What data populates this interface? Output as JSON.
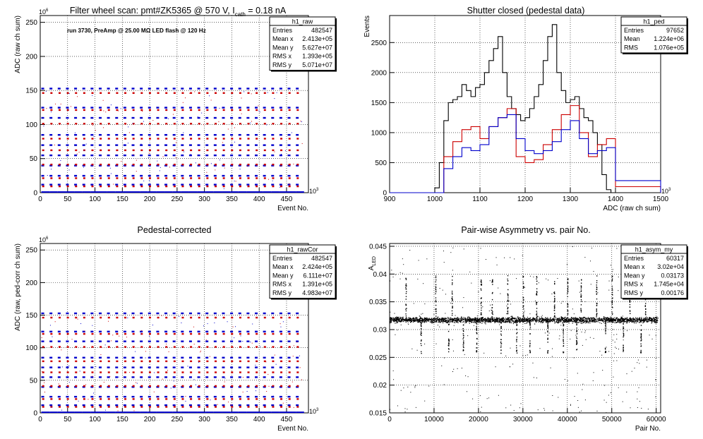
{
  "colors": {
    "black": "#000000",
    "red": "#cc0000",
    "blue": "#0000cc",
    "grid": "#000000"
  },
  "chart_data": [
    {
      "id": "raw",
      "type": "scatter",
      "title": "Filter wheel scan: pmt#ZK5365 @  570 V, I",
      "title_sub": "cath",
      "title_tail": " = 0.18 nA",
      "annotation": "run 3730, PreAmp @ 25.00 MΩ LED flash @  120 Hz",
      "xlabel": "Event No.",
      "ylabel": "ADC (raw ch sum)",
      "x_exponent": "10",
      "x_exponent_power": "3",
      "y_exponent": "10",
      "y_exponent_power": "6",
      "xlim": [
        0,
        490
      ],
      "ylim": [
        0,
        260
      ],
      "x_ticks": [
        0,
        50,
        100,
        150,
        200,
        250,
        300,
        350,
        400,
        450
      ],
      "y_ticks": [
        0,
        50,
        100,
        150,
        200,
        250
      ],
      "grid": true,
      "levels": {
        "red": [
          147,
          122,
          102,
          80,
          63,
          42,
          22,
          10
        ],
        "blue": [
          153,
          125,
          110,
          85,
          70,
          55,
          40,
          25,
          12
        ]
      },
      "burst_period": 15,
      "stats": {
        "name": "h1_raw",
        "rows": [
          [
            "Entries",
            "482547"
          ],
          [
            "Mean x",
            "2.413e+05"
          ],
          [
            "Mean y",
            "5.627e+07"
          ],
          [
            "RMS x",
            "1.393e+05"
          ],
          [
            "RMS y",
            "5.071e+07"
          ]
        ]
      }
    },
    {
      "id": "ped",
      "type": "line",
      "title": "Shutter closed (pedestal data)",
      "xlabel": "ADC (raw ch sum)",
      "ylabel": "Events",
      "x_exponent": "10",
      "x_exponent_power": "3",
      "xlim": [
        900,
        1500
      ],
      "ylim": [
        0,
        2950
      ],
      "x_ticks": [
        900,
        1000,
        1100,
        1200,
        1300,
        1400,
        1500
      ],
      "y_ticks": [
        0,
        500,
        1000,
        1500,
        2000,
        2500
      ],
      "grid": true,
      "series": [
        {
          "color": "black",
          "x": [
            900,
            990,
            1000,
            1010,
            1020,
            1030,
            1040,
            1050,
            1060,
            1070,
            1080,
            1090,
            1100,
            1110,
            1120,
            1130,
            1140,
            1150,
            1160,
            1170,
            1180,
            1190,
            1200,
            1210,
            1220,
            1230,
            1240,
            1250,
            1260,
            1270,
            1280,
            1290,
            1300,
            1310,
            1320,
            1330,
            1340,
            1350,
            1360,
            1370,
            1380,
            1390,
            1400,
            1410,
            1420,
            1500
          ],
          "y": [
            0,
            0,
            80,
            500,
            1200,
            1500,
            1550,
            1600,
            1800,
            1700,
            1600,
            1750,
            1800,
            2000,
            2200,
            2400,
            2600,
            2000,
            1600,
            1400,
            1300,
            1200,
            1250,
            1400,
            1600,
            1800,
            2200,
            2600,
            2800,
            2000,
            1700,
            1500,
            1550,
            1600,
            1400,
            1250,
            1200,
            1000,
            800,
            300,
            50,
            0,
            0,
            0,
            0,
            0
          ],
          "x_offset": 0
        },
        {
          "color": "red",
          "x": [
            900,
            1000,
            1020,
            1040,
            1060,
            1080,
            1100,
            1120,
            1140,
            1160,
            1180,
            1200,
            1220,
            1240,
            1260,
            1280,
            1300,
            1320,
            1340,
            1360,
            1380,
            1400,
            1500
          ],
          "y": [
            0,
            0,
            600,
            850,
            1050,
            1100,
            900,
            1100,
            1250,
            1400,
            600,
            500,
            550,
            800,
            1050,
            1300,
            1450,
            1000,
            600,
            800,
            900,
            100,
            0
          ]
        },
        {
          "color": "blue",
          "x": [
            900,
            1000,
            1020,
            1040,
            1060,
            1080,
            1100,
            1120,
            1140,
            1160,
            1180,
            1200,
            1220,
            1240,
            1260,
            1280,
            1300,
            1320,
            1340,
            1360,
            1380,
            1400,
            1500
          ],
          "y": [
            0,
            0,
            400,
            600,
            750,
            700,
            800,
            1100,
            1250,
            1300,
            900,
            700,
            650,
            700,
            850,
            1050,
            1200,
            900,
            650,
            700,
            750,
            200,
            0
          ]
        }
      ],
      "stats": {
        "name": "h1_ped",
        "rows": [
          [
            "Entries",
            "97652"
          ],
          [
            "Mean",
            "1.224e+06"
          ],
          [
            "RMS",
            "1.076e+05"
          ]
        ]
      }
    },
    {
      "id": "rawcor",
      "type": "scatter",
      "title": "Pedestal-corrected",
      "xlabel": "Event No.",
      "ylabel": "ADC (raw, ped-corr ch sum)",
      "x_exponent": "10",
      "x_exponent_power": "3",
      "y_exponent": "10",
      "y_exponent_power": "6",
      "xlim": [
        0,
        490
      ],
      "ylim": [
        0,
        260
      ],
      "x_ticks": [
        0,
        50,
        100,
        150,
        200,
        250,
        300,
        350,
        400,
        450
      ],
      "y_ticks": [
        0,
        50,
        100,
        150,
        200,
        250
      ],
      "grid": true,
      "levels": {
        "red": [
          147,
          122,
          102,
          80,
          63,
          42,
          22,
          10
        ],
        "blue": [
          153,
          125,
          110,
          85,
          70,
          55,
          40,
          25,
          12
        ]
      },
      "burst_period": 15,
      "stats": {
        "name": "h1_rawCor",
        "rows": [
          [
            "Entries",
            "482547"
          ],
          [
            "Mean x",
            "2.424e+05"
          ],
          [
            "Mean y",
            "6.111e+07"
          ],
          [
            "RMS x",
            "1.391e+05"
          ],
          [
            "RMS y",
            "4.983e+07"
          ]
        ]
      }
    },
    {
      "id": "asym",
      "type": "scatter",
      "title": "Pair-wise Asymmetry vs. pair No.",
      "xlabel": "Pair No.",
      "ylabel": "A",
      "ylabel_sub": "LED",
      "xlim": [
        0,
        61000
      ],
      "ylim": [
        0.015,
        0.0455
      ],
      "x_ticks": [
        0,
        10000,
        20000,
        30000,
        40000,
        50000,
        60000
      ],
      "y_ticks": [
        0.015,
        0.02,
        0.025,
        0.03,
        0.035,
        0.04,
        0.045
      ],
      "y_tick_labels": [
        "0.015",
        "0.02",
        "0.025",
        "0.03",
        "0.035",
        "0.04",
        "0.045"
      ],
      "grid": true,
      "band_center": 0.0318,
      "band_width": 0.0008,
      "spikes_up": [
        3600,
        10300,
        14000,
        20500,
        23000,
        26500,
        30000,
        33000,
        37000,
        40000,
        43000,
        46500,
        50000,
        54000,
        57500
      ],
      "spikes_down": [
        7000,
        13200,
        16500,
        19500,
        25000,
        28500,
        31500,
        35500,
        39000,
        42000,
        48500,
        52500,
        56500
      ],
      "stats": {
        "name": "h1_asym_my",
        "rows": [
          [
            "Entries",
            "60317"
          ],
          [
            "Mean x",
            "3.02e+04"
          ],
          [
            "Mean y",
            "0.03173"
          ],
          [
            "RMS x",
            "1.745e+04"
          ],
          [
            "RMS y",
            "0.00176"
          ]
        ]
      }
    }
  ]
}
